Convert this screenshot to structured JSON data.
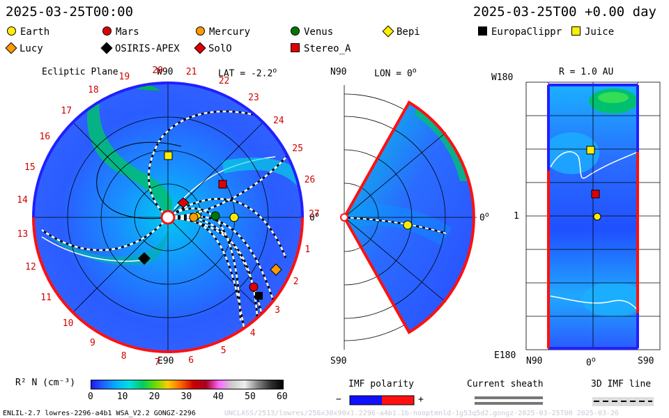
{
  "header": {
    "timestamp": "2025-03-25T00:00",
    "forecast_time": "2025-03-25T00 +0.00 day"
  },
  "legend": [
    {
      "label": "Earth",
      "shape": "circle",
      "color": "#ffee00"
    },
    {
      "label": "Mars",
      "shape": "circle",
      "color": "#e00000"
    },
    {
      "label": "Mercury",
      "shape": "circle",
      "color": "#ff9900"
    },
    {
      "label": "Venus",
      "shape": "circle",
      "color": "#007700"
    },
    {
      "label": "Bepi",
      "shape": "diamond",
      "color": "#ffee00"
    },
    {
      "label": "EuropaClippr",
      "shape": "square",
      "color": "#000000"
    },
    {
      "label": "Juice",
      "shape": "square",
      "color": "#ffee00"
    },
    {
      "label": "Lucy",
      "shape": "diamond",
      "color": "#ff9900"
    },
    {
      "label": "OSIRIS-APEX",
      "shape": "diamond",
      "color": "#000000"
    },
    {
      "label": "SolO",
      "shape": "diamond",
      "color": "#e00000"
    },
    {
      "label": "Stereo_A",
      "shape": "square",
      "color": "#e00000"
    }
  ],
  "panel1": {
    "title": "Ecliptic Plane",
    "top_label": "W90",
    "lat_label": "LAT = -2.2",
    "deg": "o",
    "right_label": "0",
    "bottom_label": "E90",
    "carrington": [
      "1",
      "2",
      "3",
      "4",
      "5",
      "6",
      "7",
      "8",
      "9",
      "10",
      "11",
      "12",
      "13",
      "14",
      "15",
      "16",
      "17",
      "18",
      "19",
      "20",
      "21",
      "22",
      "23",
      "24",
      "25",
      "26",
      "27"
    ]
  },
  "panel2": {
    "top_label": "N90",
    "lon_label": "LON = 0",
    "deg": "o",
    "right_label": "0",
    "bottom_label": "S90"
  },
  "panel3": {
    "title": "R = 1.0 AU",
    "top_left": "W180",
    "mid_left": "1",
    "bottom_left": "E180",
    "x_left": "N90",
    "x_mid": "0",
    "deg": "o",
    "x_right": "S90"
  },
  "colorbar": {
    "label": "R² N (cm⁻³)",
    "ticks": [
      "0",
      "10",
      "20",
      "30",
      "40",
      "50",
      "60"
    ],
    "range": [
      0,
      60
    ],
    "stops": [
      "#1a1aff",
      "#2266ff",
      "#00b4ff",
      "#00e0e0",
      "#00cc66",
      "#66dd00",
      "#ffcc00",
      "#ff6600",
      "#cc0000",
      "#aa0022",
      "#ff66ff",
      "#cccccc",
      "#eeeeee",
      "#888888",
      "#333333",
      "#000000"
    ]
  },
  "bottom_legends": {
    "imf_polarity": "IMF polarity",
    "minus": "−",
    "plus": "+",
    "current_sheath": "Current sheath",
    "imf_line": "3D IMF line"
  },
  "footer": {
    "left": "ENLIL-2.7 lowres-2296-a4b1 WSA_V2.2 GONGZ-2296",
    "right": "UNCLASS/2513/lowres/256x30x90x1.2296-a4b1.1b-nooptmnld-1g53q5d2.gongz-2025-03-25T00   2025-03-26"
  },
  "chart_data": {
    "type": "heatmap",
    "quantity": "R² N (cm⁻³)",
    "color_range": [
      0,
      60
    ],
    "panels": [
      "Ecliptic Plane",
      "LON = 0",
      "R = 1.0 AU"
    ]
  }
}
